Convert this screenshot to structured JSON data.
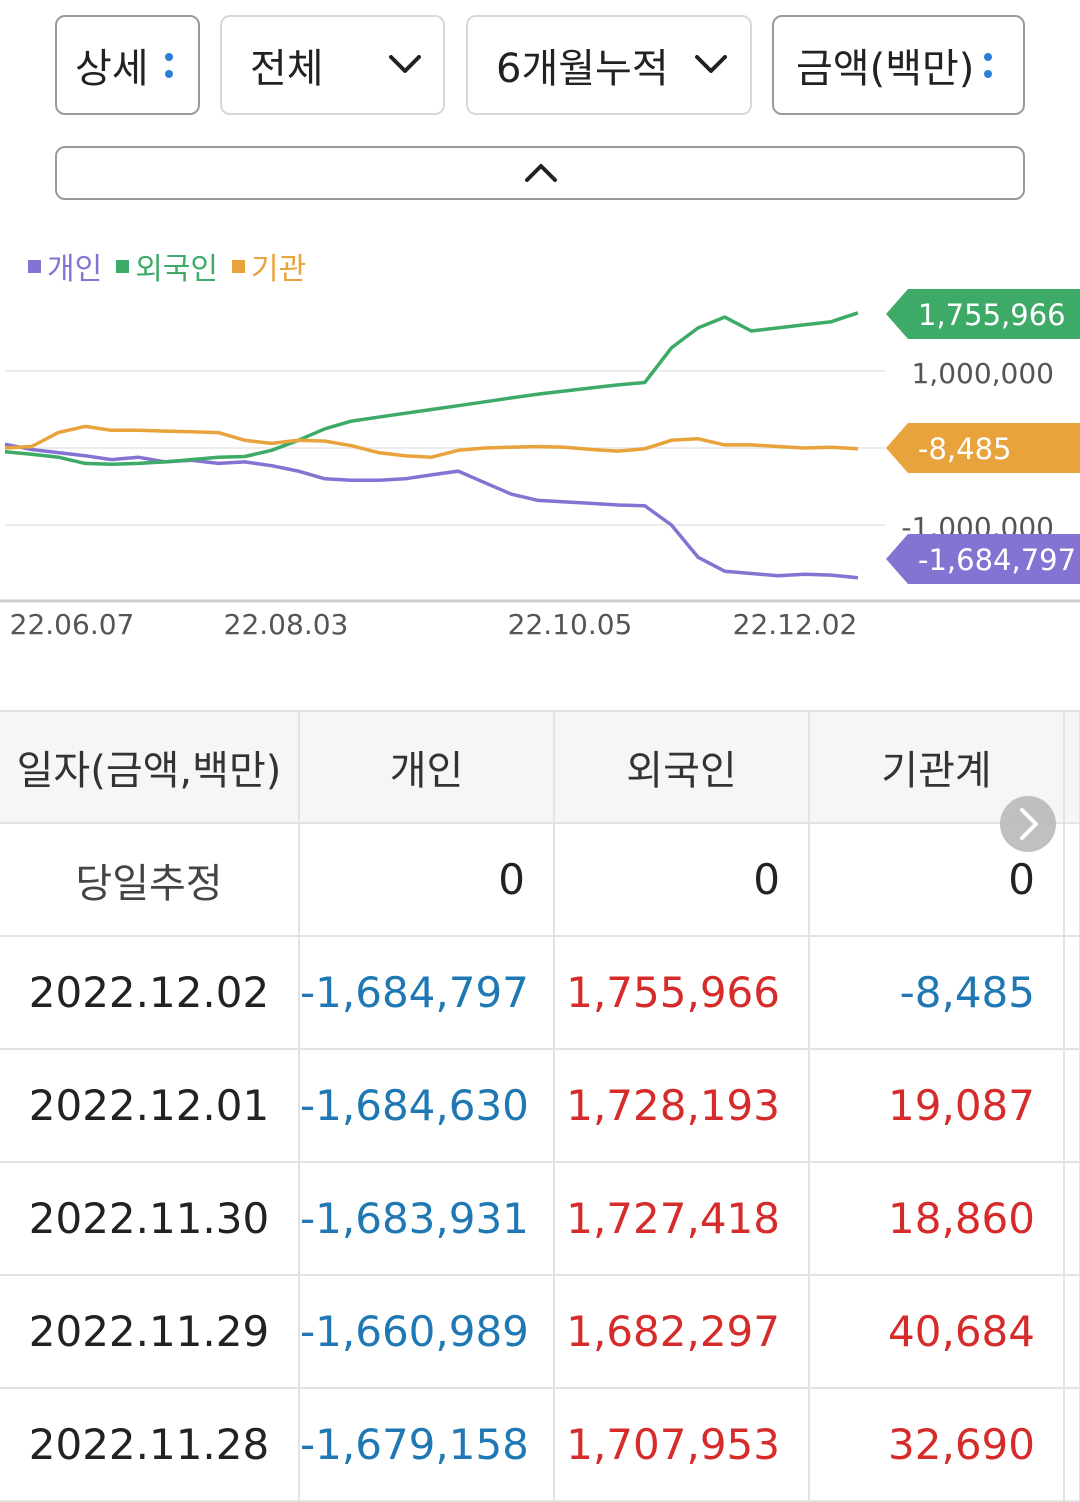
{
  "filters": {
    "detail_label": "상세",
    "scope_label": "전체",
    "period_label": "6개월누적",
    "unit_label": "금액(백만)"
  },
  "icons": {
    "kebab": "kebab-icon",
    "chevron_down": "chevron-down-icon",
    "chevron_up": "chevron-up-icon",
    "chevron_right": "chevron-right-icon"
  },
  "chart_data": {
    "type": "line",
    "legend_position": "top-left",
    "grid": true,
    "ylim": [
      -2000000,
      2000000
    ],
    "y_gridlines": [
      1000000,
      0,
      -1000000
    ],
    "y_tick_labels": [
      "1,000,000",
      "-1,000,000"
    ],
    "x_tick_labels": [
      "22.06.07",
      "22.08.03",
      "22.10.05",
      "22.12.02"
    ],
    "series": [
      {
        "name": "개인",
        "color": "#8573d4",
        "end_label": "-1,684,797",
        "values": [
          50000,
          -20000,
          -60000,
          -100000,
          -150000,
          -120000,
          -180000,
          -160000,
          -200000,
          -180000,
          -230000,
          -300000,
          -400000,
          -420000,
          -420000,
          -400000,
          -350000,
          -300000,
          -450000,
          -600000,
          -680000,
          -700000,
          -720000,
          -740000,
          -750000,
          -1000000,
          -1420000,
          -1600000,
          -1630000,
          -1660000,
          -1640000,
          -1650000,
          -1684797
        ]
      },
      {
        "name": "외국인",
        "color": "#3daa68",
        "end_label": "1,755,966",
        "values": [
          -50000,
          -80000,
          -120000,
          -200000,
          -210000,
          -200000,
          -180000,
          -150000,
          -120000,
          -110000,
          -30000,
          100000,
          250000,
          350000,
          400000,
          450000,
          500000,
          550000,
          600000,
          650000,
          700000,
          740000,
          780000,
          820000,
          850000,
          1300000,
          1560000,
          1700000,
          1520000,
          1560000,
          1600000,
          1640000,
          1755966
        ]
      },
      {
        "name": "기관",
        "color": "#e8a33c",
        "end_label": "-8,485",
        "values": [
          0,
          20000,
          200000,
          280000,
          230000,
          230000,
          220000,
          210000,
          200000,
          100000,
          60000,
          100000,
          90000,
          30000,
          -60000,
          -100000,
          -120000,
          -30000,
          0,
          10000,
          20000,
          10000,
          -20000,
          -40000,
          -10000,
          100000,
          120000,
          40000,
          40000,
          20000,
          0,
          10000,
          -8485
        ]
      }
    ]
  },
  "table": {
    "headers": [
      "일자(금액,백만)",
      "개인",
      "외국인",
      "기관계"
    ],
    "today": {
      "label": "당일추정",
      "individual": "0",
      "foreign": "0",
      "institution": "0"
    },
    "rows": [
      {
        "date": "2022.12.02",
        "individual": "-1,684,797",
        "foreign": "1,755,966",
        "institution": "-8,485"
      },
      {
        "date": "2022.12.01",
        "individual": "-1,684,630",
        "foreign": "1,728,193",
        "institution": "19,087"
      },
      {
        "date": "2022.11.30",
        "individual": "-1,683,931",
        "foreign": "1,727,418",
        "institution": "18,860"
      },
      {
        "date": "2022.11.29",
        "individual": "-1,660,989",
        "foreign": "1,682,297",
        "institution": "40,684"
      },
      {
        "date": "2022.11.28",
        "individual": "-1,679,158",
        "foreign": "1,707,953",
        "institution": "32,690"
      }
    ]
  }
}
